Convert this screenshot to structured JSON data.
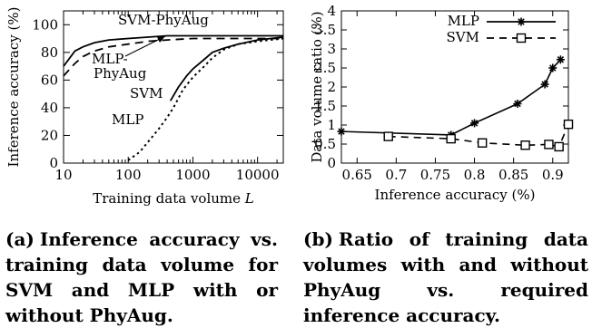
{
  "captions": {
    "a": {
      "tag": "(a)",
      "text": "Inference accuracy vs. training data volume for SVM and MLP with or without PhyAug."
    },
    "b": {
      "tag": "(b)",
      "text": "Ratio of training data volumes with and without PhyAug vs. required inference accuracy."
    }
  },
  "chart_data": [
    {
      "id": "a",
      "type": "line",
      "title": "",
      "xlabel": "Training data volume L",
      "ylabel": "Inference accuracy (%)",
      "xscale": "log",
      "xlim": [
        10,
        25000
      ],
      "ylim": [
        0,
        110
      ],
      "xticks": [
        "10",
        "100",
        "1000",
        "10000"
      ],
      "yticks": [
        "0",
        "20",
        "40",
        "60",
        "80",
        "100"
      ],
      "grid": false,
      "series": [
        {
          "name": "SVM-PhyAug",
          "style": "solid",
          "x": [
            10,
            15,
            20,
            30,
            50,
            100,
            200,
            400,
            1000,
            5000,
            25000
          ],
          "y": [
            70,
            81,
            84,
            87,
            89,
            90,
            91,
            92,
            92,
            92,
            92
          ]
        },
        {
          "name": "MLP-PhyAug",
          "style": "dashed",
          "x": [
            10,
            15,
            20,
            30,
            50,
            100,
            200,
            400,
            1000,
            5000,
            25000
          ],
          "y": [
            63,
            72,
            77,
            81,
            84,
            86,
            88,
            89,
            90,
            90,
            90
          ]
        },
        {
          "name": "SVM",
          "style": "solid",
          "x": [
            450,
            600,
            800,
            1000,
            1500,
            2000,
            3000,
            5000,
            10000,
            25000
          ],
          "y": [
            45,
            55,
            63,
            68,
            75,
            80,
            83,
            86,
            89,
            91
          ]
        },
        {
          "name": "MLP",
          "style": "dotted",
          "x": [
            100,
            150,
            200,
            300,
            400,
            500,
            700,
            1000,
            1500,
            2000,
            3000,
            5000,
            10000,
            25000
          ],
          "y": [
            2,
            8,
            15,
            25,
            33,
            40,
            53,
            62,
            70,
            76,
            82,
            86,
            88,
            90
          ]
        }
      ],
      "annotations": [
        "SVM-PhyAug",
        "MLP-PhyAug",
        "SVM",
        "MLP"
      ]
    },
    {
      "id": "b",
      "type": "line",
      "title": "",
      "xlabel": "Inference accuracy (%)",
      "ylabel": "Data volume ratio (%)",
      "xlim": [
        0.63,
        0.92
      ],
      "ylim": [
        0,
        4
      ],
      "xticks": [
        "0.65",
        "0.7",
        "0.75",
        "0.8",
        "0.85",
        "0.9"
      ],
      "yticks": [
        "0",
        "0.5",
        "1",
        "1.5",
        "2",
        "2.5",
        "3",
        "3.5",
        "4"
      ],
      "grid": false,
      "legend": "top-right",
      "series": [
        {
          "name": "MLP",
          "style": "solid",
          "marker": "asterisk",
          "x": [
            0.63,
            0.77,
            0.8,
            0.855,
            0.89,
            0.9,
            0.91
          ],
          "y": [
            0.83,
            0.74,
            1.05,
            1.56,
            2.07,
            2.5,
            2.72
          ]
        },
        {
          "name": "SVM",
          "style": "dashed",
          "marker": "square",
          "x": [
            0.69,
            0.77,
            0.81,
            0.865,
            0.895,
            0.908,
            0.92
          ],
          "y": [
            0.7,
            0.64,
            0.53,
            0.47,
            0.49,
            0.43,
            1.02
          ]
        }
      ]
    }
  ]
}
